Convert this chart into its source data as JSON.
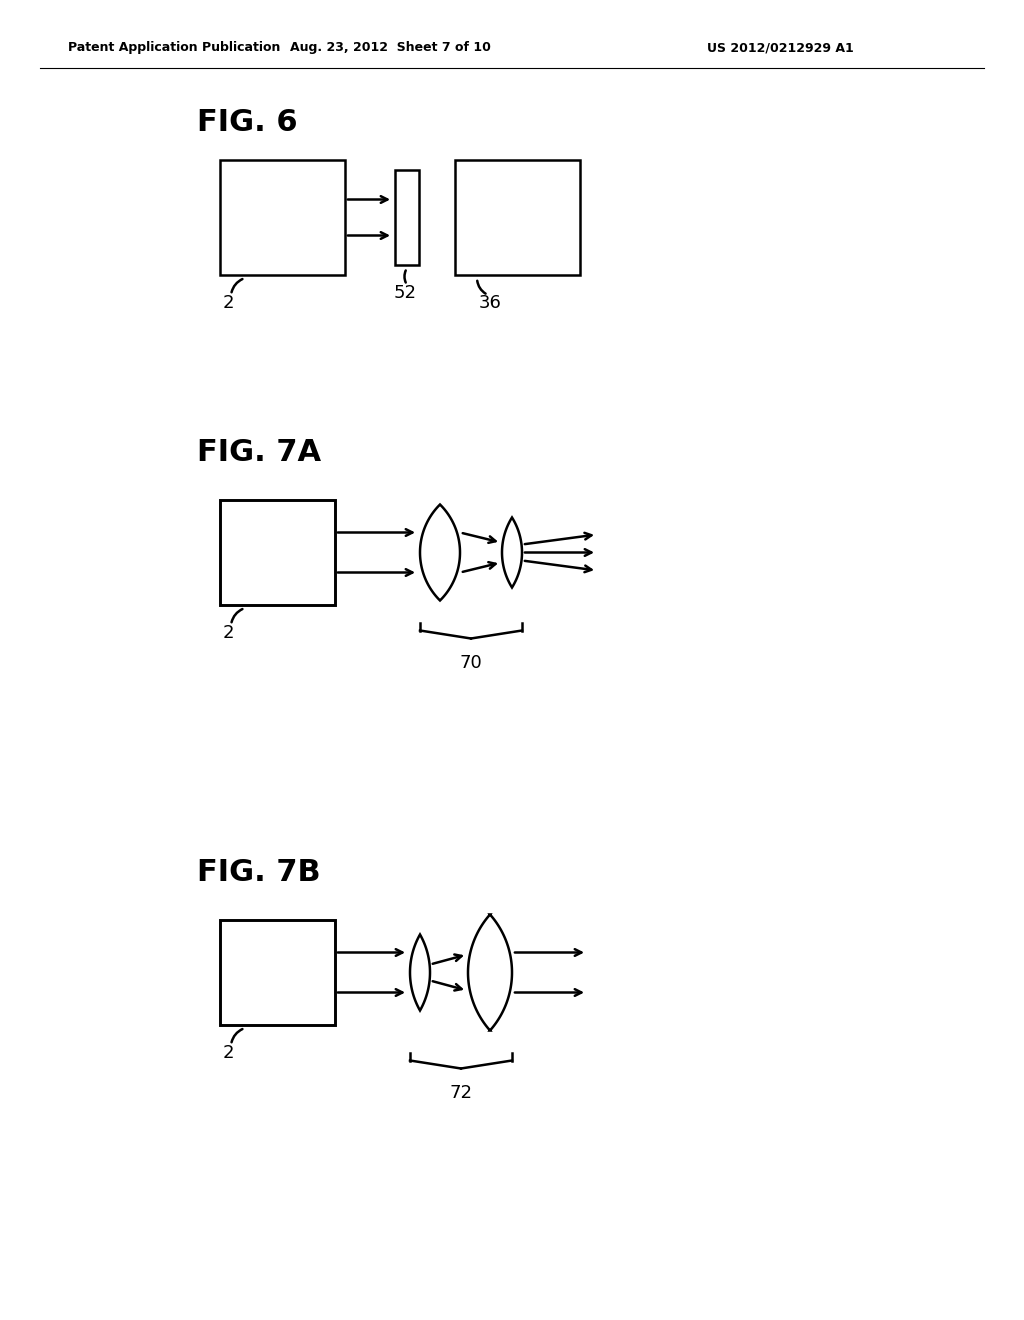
{
  "bg_color": "#ffffff",
  "header_left": "Patent Application Publication",
  "header_mid": "Aug. 23, 2012  Sheet 7 of 10",
  "header_right": "US 2012/0212929 A1",
  "fig6_label": "FIG. 6",
  "fig7a_label": "FIG. 7A",
  "fig7b_label": "FIG. 7B",
  "label_2a": "2",
  "label_52": "52",
  "label_36": "36",
  "label_2b": "2",
  "label_70": "70",
  "label_2c": "2",
  "label_72": "72",
  "line_color": "#000000",
  "lw": 1.8
}
